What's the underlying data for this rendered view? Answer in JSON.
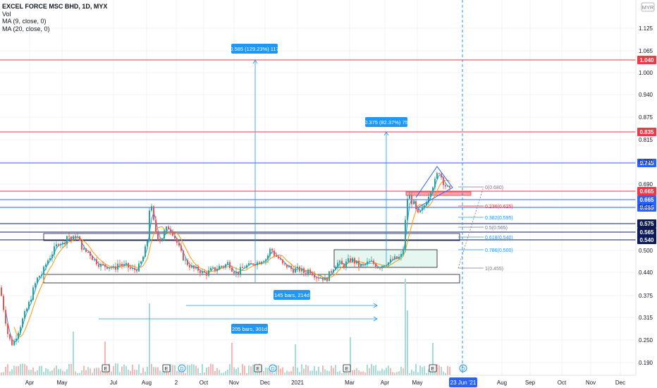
{
  "legend": {
    "symbol": "EXCEL FORCE MSC BHD, 1D, MYX",
    "vol": "Vol",
    "ma9": "MA (9, close, 0)",
    "ma20": "MA (20, close, 0)"
  },
  "colors": {
    "up": "#26a69a",
    "down": "#ef5350",
    "ma_fast": "#2196f3",
    "ma_slow": "#ff9800",
    "resistance": "#f23645",
    "support": "#2962ff",
    "measure": "#2196f3",
    "fib": "#787b86",
    "box_green": "#e6f7f1"
  },
  "chart_data": {
    "type": "candlestick",
    "currency": "MYX",
    "y_axis_label": "MYR",
    "ylim": [
      0.16,
      1.165
    ],
    "y_ticks": [
      "1.125",
      "1.065",
      "1.000",
      "0.940",
      "0.875",
      "0.815",
      "0.750",
      "0.690",
      "0.625",
      "0.560",
      "0.500",
      "0.440",
      "0.375",
      "0.315",
      "0.250",
      "0.190"
    ],
    "x_ticks": [
      "Apr",
      "May",
      "Jul",
      "Aug",
      "2",
      "Oct",
      "Nov",
      "Dec",
      "2021",
      "Mar",
      "Apr",
      "May",
      "Aug",
      "Sep",
      "Oct",
      "Nov",
      "Dec"
    ],
    "x_highlight": "23 Jun '21",
    "horizontal_levels": [
      {
        "value": 1.04,
        "label": "1.040",
        "kind": "resistance"
      },
      {
        "value": 0.835,
        "label": "0.835",
        "kind": "resistance"
      },
      {
        "value": 0.745,
        "label": "0.745",
        "kind": "support"
      },
      {
        "value": 0.665,
        "label": "0.665",
        "kind": "resistance"
      },
      {
        "value": 0.665,
        "label": "0.665",
        "kind": "support"
      },
      {
        "value": 0.655,
        "label": "0.655",
        "kind": "support"
      },
      {
        "value": 0.575,
        "label": "0.575",
        "kind": "dark"
      },
      {
        "value": 0.565,
        "label": "0.565",
        "kind": "dark"
      },
      {
        "value": 0.54,
        "label": "0.540",
        "kind": "dark"
      }
    ],
    "fib_levels": [
      {
        "label": "0(0.680)",
        "value": 0.68
      },
      {
        "label": "0.236(0.625)",
        "value": 0.625
      },
      {
        "label": "0.382(0.595)",
        "value": 0.595
      },
      {
        "label": "0.5(0.565)",
        "value": 0.565
      },
      {
        "label": "0.618(0.540)",
        "value": 0.54
      },
      {
        "label": "0.786(0.500)",
        "value": 0.5
      },
      {
        "label": "1(0.455)",
        "value": 0.455
      }
    ],
    "measurements": [
      {
        "label": "0.585 (129.23%) 117"
      },
      {
        "label": "0.375 (82.37%) 75"
      },
      {
        "label": "145 bars, 214d"
      },
      {
        "label": "205 bars, 301d"
      }
    ],
    "event_markers": [
      "E",
      "E",
      "D",
      "E",
      "D",
      "E",
      "E",
      "D"
    ],
    "price_path": [
      [
        0,
        0.4
      ],
      [
        6,
        0.33
      ],
      [
        12,
        0.26
      ],
      [
        18,
        0.24
      ],
      [
        24,
        0.27
      ],
      [
        30,
        0.3
      ],
      [
        36,
        0.33
      ],
      [
        42,
        0.36
      ],
      [
        48,
        0.4
      ],
      [
        54,
        0.43
      ],
      [
        60,
        0.44
      ],
      [
        66,
        0.47
      ],
      [
        72,
        0.49
      ],
      [
        78,
        0.51
      ],
      [
        84,
        0.53
      ],
      [
        90,
        0.52
      ],
      [
        96,
        0.55
      ],
      [
        102,
        0.53
      ],
      [
        108,
        0.55
      ],
      [
        114,
        0.52
      ],
      [
        120,
        0.5
      ],
      [
        126,
        0.5
      ],
      [
        132,
        0.48
      ],
      [
        138,
        0.47
      ],
      [
        144,
        0.46
      ],
      [
        150,
        0.46
      ],
      [
        156,
        0.46
      ],
      [
        162,
        0.45
      ],
      [
        168,
        0.47
      ],
      [
        174,
        0.46
      ],
      [
        180,
        0.46
      ],
      [
        186,
        0.45
      ],
      [
        192,
        0.45
      ],
      [
        198,
        0.46
      ],
      [
        204,
        0.49
      ],
      [
        210,
        0.54
      ],
      [
        213,
        0.66
      ],
      [
        216,
        0.6
      ],
      [
        222,
        0.55
      ],
      [
        228,
        0.53
      ],
      [
        234,
        0.56
      ],
      [
        240,
        0.57
      ],
      [
        246,
        0.55
      ],
      [
        252,
        0.52
      ],
      [
        258,
        0.49
      ],
      [
        264,
        0.47
      ],
      [
        270,
        0.46
      ],
      [
        276,
        0.45
      ],
      [
        282,
        0.45
      ],
      [
        288,
        0.44
      ],
      [
        294,
        0.44
      ],
      [
        300,
        0.45
      ],
      [
        306,
        0.45
      ],
      [
        312,
        0.46
      ],
      [
        318,
        0.46
      ],
      [
        324,
        0.47
      ],
      [
        330,
        0.45
      ],
      [
        336,
        0.44
      ],
      [
        342,
        0.45
      ],
      [
        348,
        0.46
      ],
      [
        354,
        0.46
      ],
      [
        360,
        0.47
      ],
      [
        366,
        0.47
      ],
      [
        372,
        0.48
      ],
      [
        378,
        0.48
      ],
      [
        384,
        0.51
      ],
      [
        390,
        0.49
      ],
      [
        396,
        0.48
      ],
      [
        402,
        0.46
      ],
      [
        408,
        0.46
      ],
      [
        414,
        0.45
      ],
      [
        420,
        0.45
      ],
      [
        426,
        0.45
      ],
      [
        432,
        0.44
      ],
      [
        438,
        0.45
      ],
      [
        444,
        0.44
      ],
      [
        450,
        0.43
      ],
      [
        456,
        0.43
      ],
      [
        462,
        0.42
      ],
      [
        468,
        0.44
      ],
      [
        474,
        0.46
      ],
      [
        480,
        0.47
      ],
      [
        486,
        0.46
      ],
      [
        492,
        0.47
      ],
      [
        498,
        0.48
      ],
      [
        504,
        0.47
      ],
      [
        510,
        0.46
      ],
      [
        516,
        0.46
      ],
      [
        522,
        0.47
      ],
      [
        528,
        0.47
      ],
      [
        534,
        0.46
      ],
      [
        540,
        0.46
      ],
      [
        546,
        0.47
      ],
      [
        552,
        0.47
      ],
      [
        558,
        0.48
      ],
      [
        564,
        0.48
      ],
      [
        570,
        0.49
      ],
      [
        574,
        0.53
      ],
      [
        576,
        0.64
      ],
      [
        580,
        0.66
      ],
      [
        584,
        0.64
      ],
      [
        588,
        0.63
      ],
      [
        592,
        0.6
      ],
      [
        596,
        0.61
      ],
      [
        600,
        0.62
      ],
      [
        606,
        0.65
      ],
      [
        612,
        0.68
      ],
      [
        618,
        0.7
      ],
      [
        622,
        0.73
      ],
      [
        626,
        0.71
      ],
      [
        630,
        0.69
      ],
      [
        634,
        0.68
      ],
      [
        638,
        0.67
      ]
    ]
  }
}
